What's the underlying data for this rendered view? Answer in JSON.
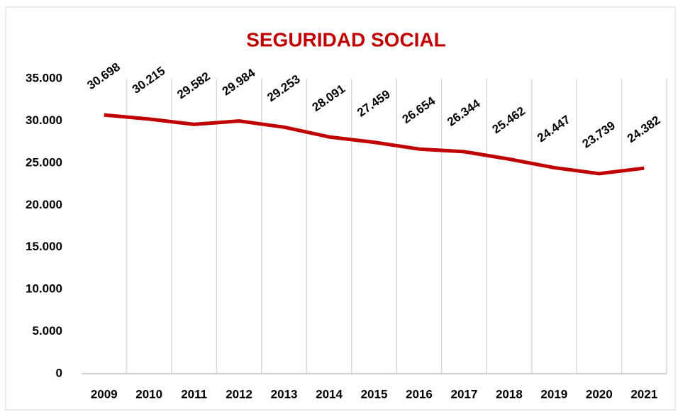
{
  "chart_data": {
    "type": "line",
    "title": "SEGURIDAD SOCIAL",
    "categories": [
      "2009",
      "2010",
      "2011",
      "2012",
      "2013",
      "2014",
      "2015",
      "2016",
      "2017",
      "2018",
      "2019",
      "2020",
      "2021"
    ],
    "series": [
      {
        "name": "SEGURIDAD SOCIAL",
        "color": "#c00000",
        "values": [
          30698,
          30215,
          29582,
          29984,
          29253,
          28091,
          27459,
          26654,
          26344,
          25462,
          24447,
          23739,
          24382
        ],
        "value_labels": [
          "30.698",
          "30.215",
          "29.582",
          "29.984",
          "29.253",
          "28.091",
          "27.459",
          "26.654",
          "26.344",
          "25.462",
          "24.447",
          "23.739",
          "24.382"
        ]
      }
    ],
    "ylim": [
      0,
      35000
    ],
    "yticks": [
      0,
      {
        "value": 5000,
        "label": "5.000"
      },
      {
        "value": 10000,
        "label": "10.000"
      },
      {
        "value": 15000,
        "label": "15.000"
      },
      {
        "value": 20000,
        "label": "20.000"
      },
      {
        "value": 25000,
        "label": "25.000"
      },
      {
        "value": 30000,
        "label": "30.000"
      },
      {
        "value": 35000,
        "label": "35.000"
      }
    ],
    "grid": "x"
  }
}
